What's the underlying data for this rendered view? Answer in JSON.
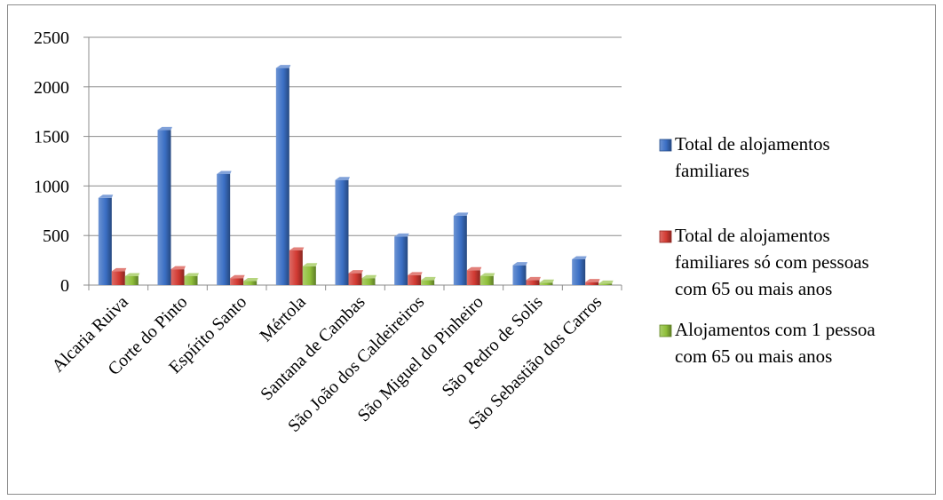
{
  "chart_data": {
    "type": "bar",
    "title": "",
    "xlabel": "",
    "ylabel": "",
    "ylim": [
      0,
      2500
    ],
    "yticks": [
      0,
      500,
      1000,
      1500,
      2000,
      2500
    ],
    "grid": true,
    "legend_position": "right",
    "categories": [
      "Alcaria Ruiva",
      "Corte do Pinto",
      "Espírito Santo",
      "Mértola",
      "Santana de Cambas",
      "São João dos Caldeireiros",
      "São Miguel do Pinheiro",
      "São Pedro de Solis",
      "São Sebastião dos Carros"
    ],
    "series": [
      {
        "name": "Total de alojamentos familiares",
        "legend_lines": [
          "Total de alojamentos",
          "familiares"
        ],
        "color": "#3b6fc4",
        "values": [
          880,
          1565,
          1120,
          2190,
          1060,
          490,
          700,
          200,
          260
        ]
      },
      {
        "name": "Total de alojamentos familiares só com pessoas com 65 ou mais anos",
        "legend_lines": [
          "Total de alojamentos",
          "familiares só com pessoas",
          "com 65 ou mais anos"
        ],
        "color": "#d23b33",
        "values": [
          140,
          160,
          70,
          350,
          120,
          100,
          150,
          50,
          30
        ]
      },
      {
        "name": "Alojamentos com 1 pessoa com 65 ou mais anos",
        "legend_lines": [
          "Alojamentos com 1 pessoa",
          "com 65 ou mais anos"
        ],
        "color": "#8fbf3a",
        "values": [
          90,
          90,
          40,
          190,
          70,
          50,
          90,
          25,
          15
        ]
      }
    ]
  }
}
